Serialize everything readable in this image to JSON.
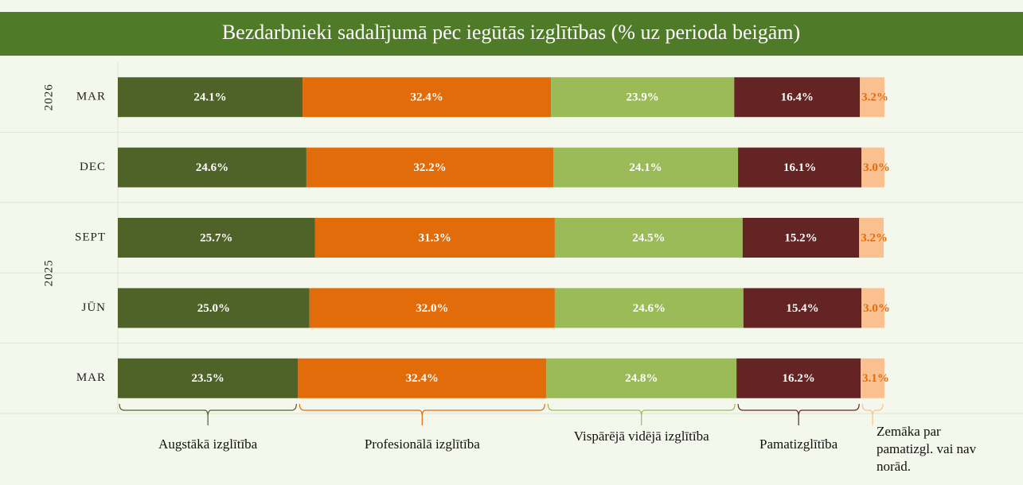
{
  "chart_data": {
    "type": "stacked-bar-horizontal",
    "title": "Bezdarbnieki sadalījumā pēc iegūtās izglītības (% uz perioda beigām)",
    "categories": [
      "MAR",
      "DEC",
      "SEPT",
      "JŪN",
      "MAR"
    ],
    "years": [
      "2026",
      "2025",
      "2025",
      "2025",
      "2025"
    ],
    "xlim": [
      0,
      100
    ],
    "series": [
      {
        "name": "Augstākā izglītība",
        "color": "#4f6228",
        "label_color": "#ffffff",
        "values": [
          24.1,
          24.6,
          25.7,
          25.0,
          23.5
        ],
        "value_labels": [
          "24.1%",
          "24.6%",
          "25.7%",
          "25.0%",
          "23.5%"
        ]
      },
      {
        "name": "Profesionālā izglītība",
        "color": "#e36c0a",
        "label_color": "#ffffff",
        "values": [
          32.4,
          32.2,
          31.3,
          32.0,
          32.4
        ],
        "value_labels": [
          "32.4%",
          "32.2%",
          "31.3%",
          "32.0%",
          "32.4%"
        ]
      },
      {
        "name": "Vispārējā vidējā izglītība",
        "color": "#9bbb59",
        "label_color": "#ffffff",
        "values": [
          23.9,
          24.1,
          24.5,
          24.6,
          24.8
        ],
        "value_labels": [
          "23.9%",
          "24.1%",
          "24.5%",
          "24.6%",
          "24.8%"
        ]
      },
      {
        "name": "Pamatizglītība",
        "color": "#632423",
        "label_color": "#ffffff",
        "values": [
          16.4,
          16.1,
          15.2,
          15.4,
          16.2
        ],
        "value_labels": [
          "16.4%",
          "16.1%",
          "15.2%",
          "15.4%",
          "16.2%"
        ]
      },
      {
        "name": "Zemāka par pamatizgl. vai nav norād.",
        "color": "#fac090",
        "label_color": "#e36c0a",
        "values": [
          3.2,
          3.0,
          3.2,
          3.0,
          3.1
        ],
        "value_labels": [
          "3.2%",
          "3.0%",
          "3.2%",
          "3.0%",
          "3.1%"
        ]
      }
    ],
    "grid": true
  }
}
